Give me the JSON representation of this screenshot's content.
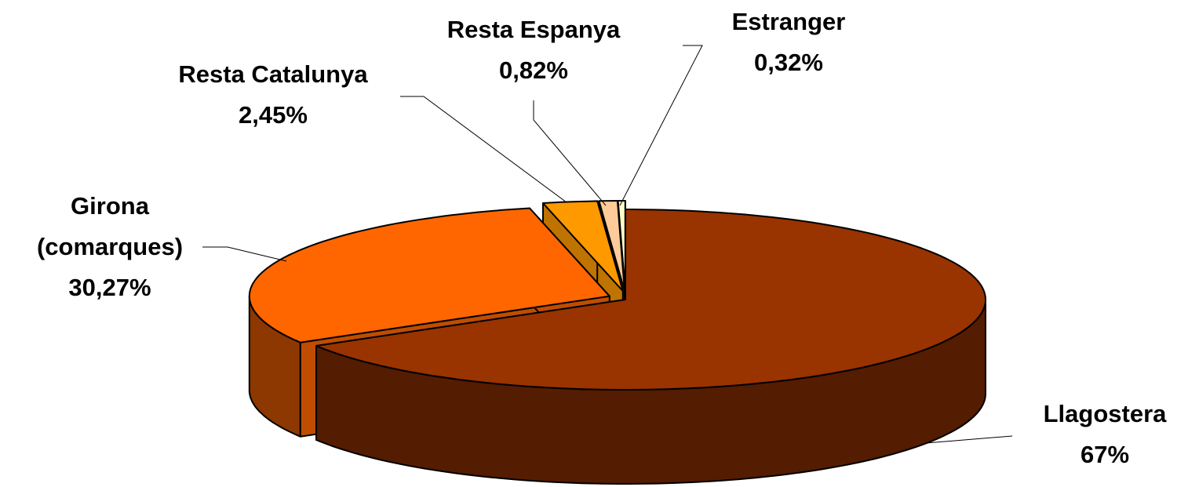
{
  "chart_data": {
    "type": "pie3d",
    "categories": [
      "Llagostera",
      "Girona (comarques)",
      "Resta Catalunya",
      "Resta Espanya",
      "Estranger"
    ],
    "values": [
      67,
      30.27,
      2.45,
      0.82,
      0.32
    ],
    "value_labels": [
      "67%",
      "30,27%",
      "2,45%",
      "0,82%",
      "0,32%"
    ],
    "colors": [
      "#993300",
      "#ff6600",
      "#ff9900",
      "#ffcc99",
      "#ffffcc"
    ]
  }
}
